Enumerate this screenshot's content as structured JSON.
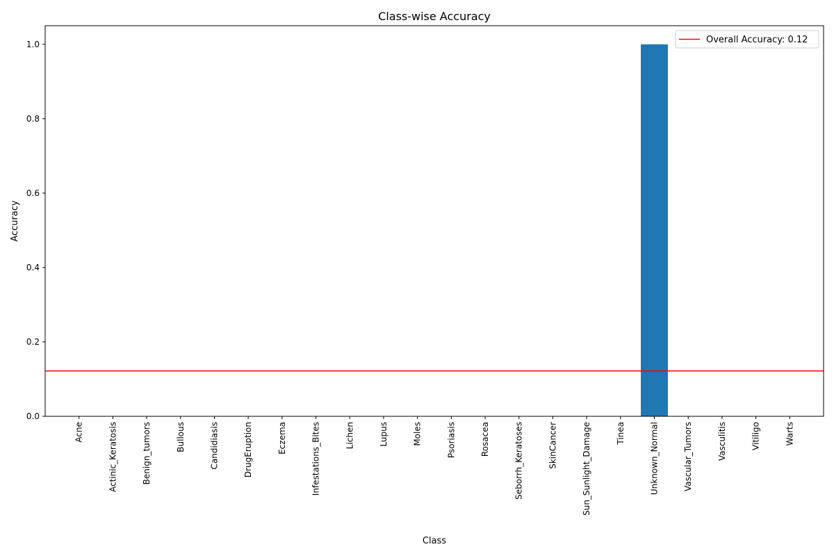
{
  "chart_data": {
    "type": "bar",
    "title": "Class-wise Accuracy",
    "xlabel": "Class",
    "ylabel": "Accuracy",
    "ylim": [
      0,
      1.05
    ],
    "yticks": [
      0.0,
      0.2,
      0.4,
      0.6,
      0.8,
      1.0
    ],
    "ytick_labels": [
      "0.0",
      "0.2",
      "0.4",
      "0.6",
      "0.8",
      "1.0"
    ],
    "grid": false,
    "legend_position": "top-right",
    "categories": [
      "Acne",
      "Actinic_Keratosis",
      "Benign_tumors",
      "Bullous",
      "Candidiasis",
      "DrugEruption",
      "Eczema",
      "Infestations_Bites",
      "Lichen",
      "Lupus",
      "Moles",
      "Psoriasis",
      "Rosacea",
      "Seborrh_Keratoses",
      "SkinCancer",
      "Sun_Sunlight_Damage",
      "Tinea",
      "Unknown_Normal",
      "Vascular_Tumors",
      "Vasculitis",
      "Vitiligo",
      "Warts"
    ],
    "values": [
      0,
      0,
      0,
      0,
      0,
      0,
      0,
      0,
      0,
      0,
      0,
      0,
      0,
      0,
      0,
      0,
      0,
      1.0,
      0,
      0,
      0,
      0
    ],
    "bar_color": "#1f77b4",
    "reference_line": {
      "label": "Overall Accuracy: 0.12",
      "y": 0.122,
      "color": "#ff0000"
    }
  }
}
